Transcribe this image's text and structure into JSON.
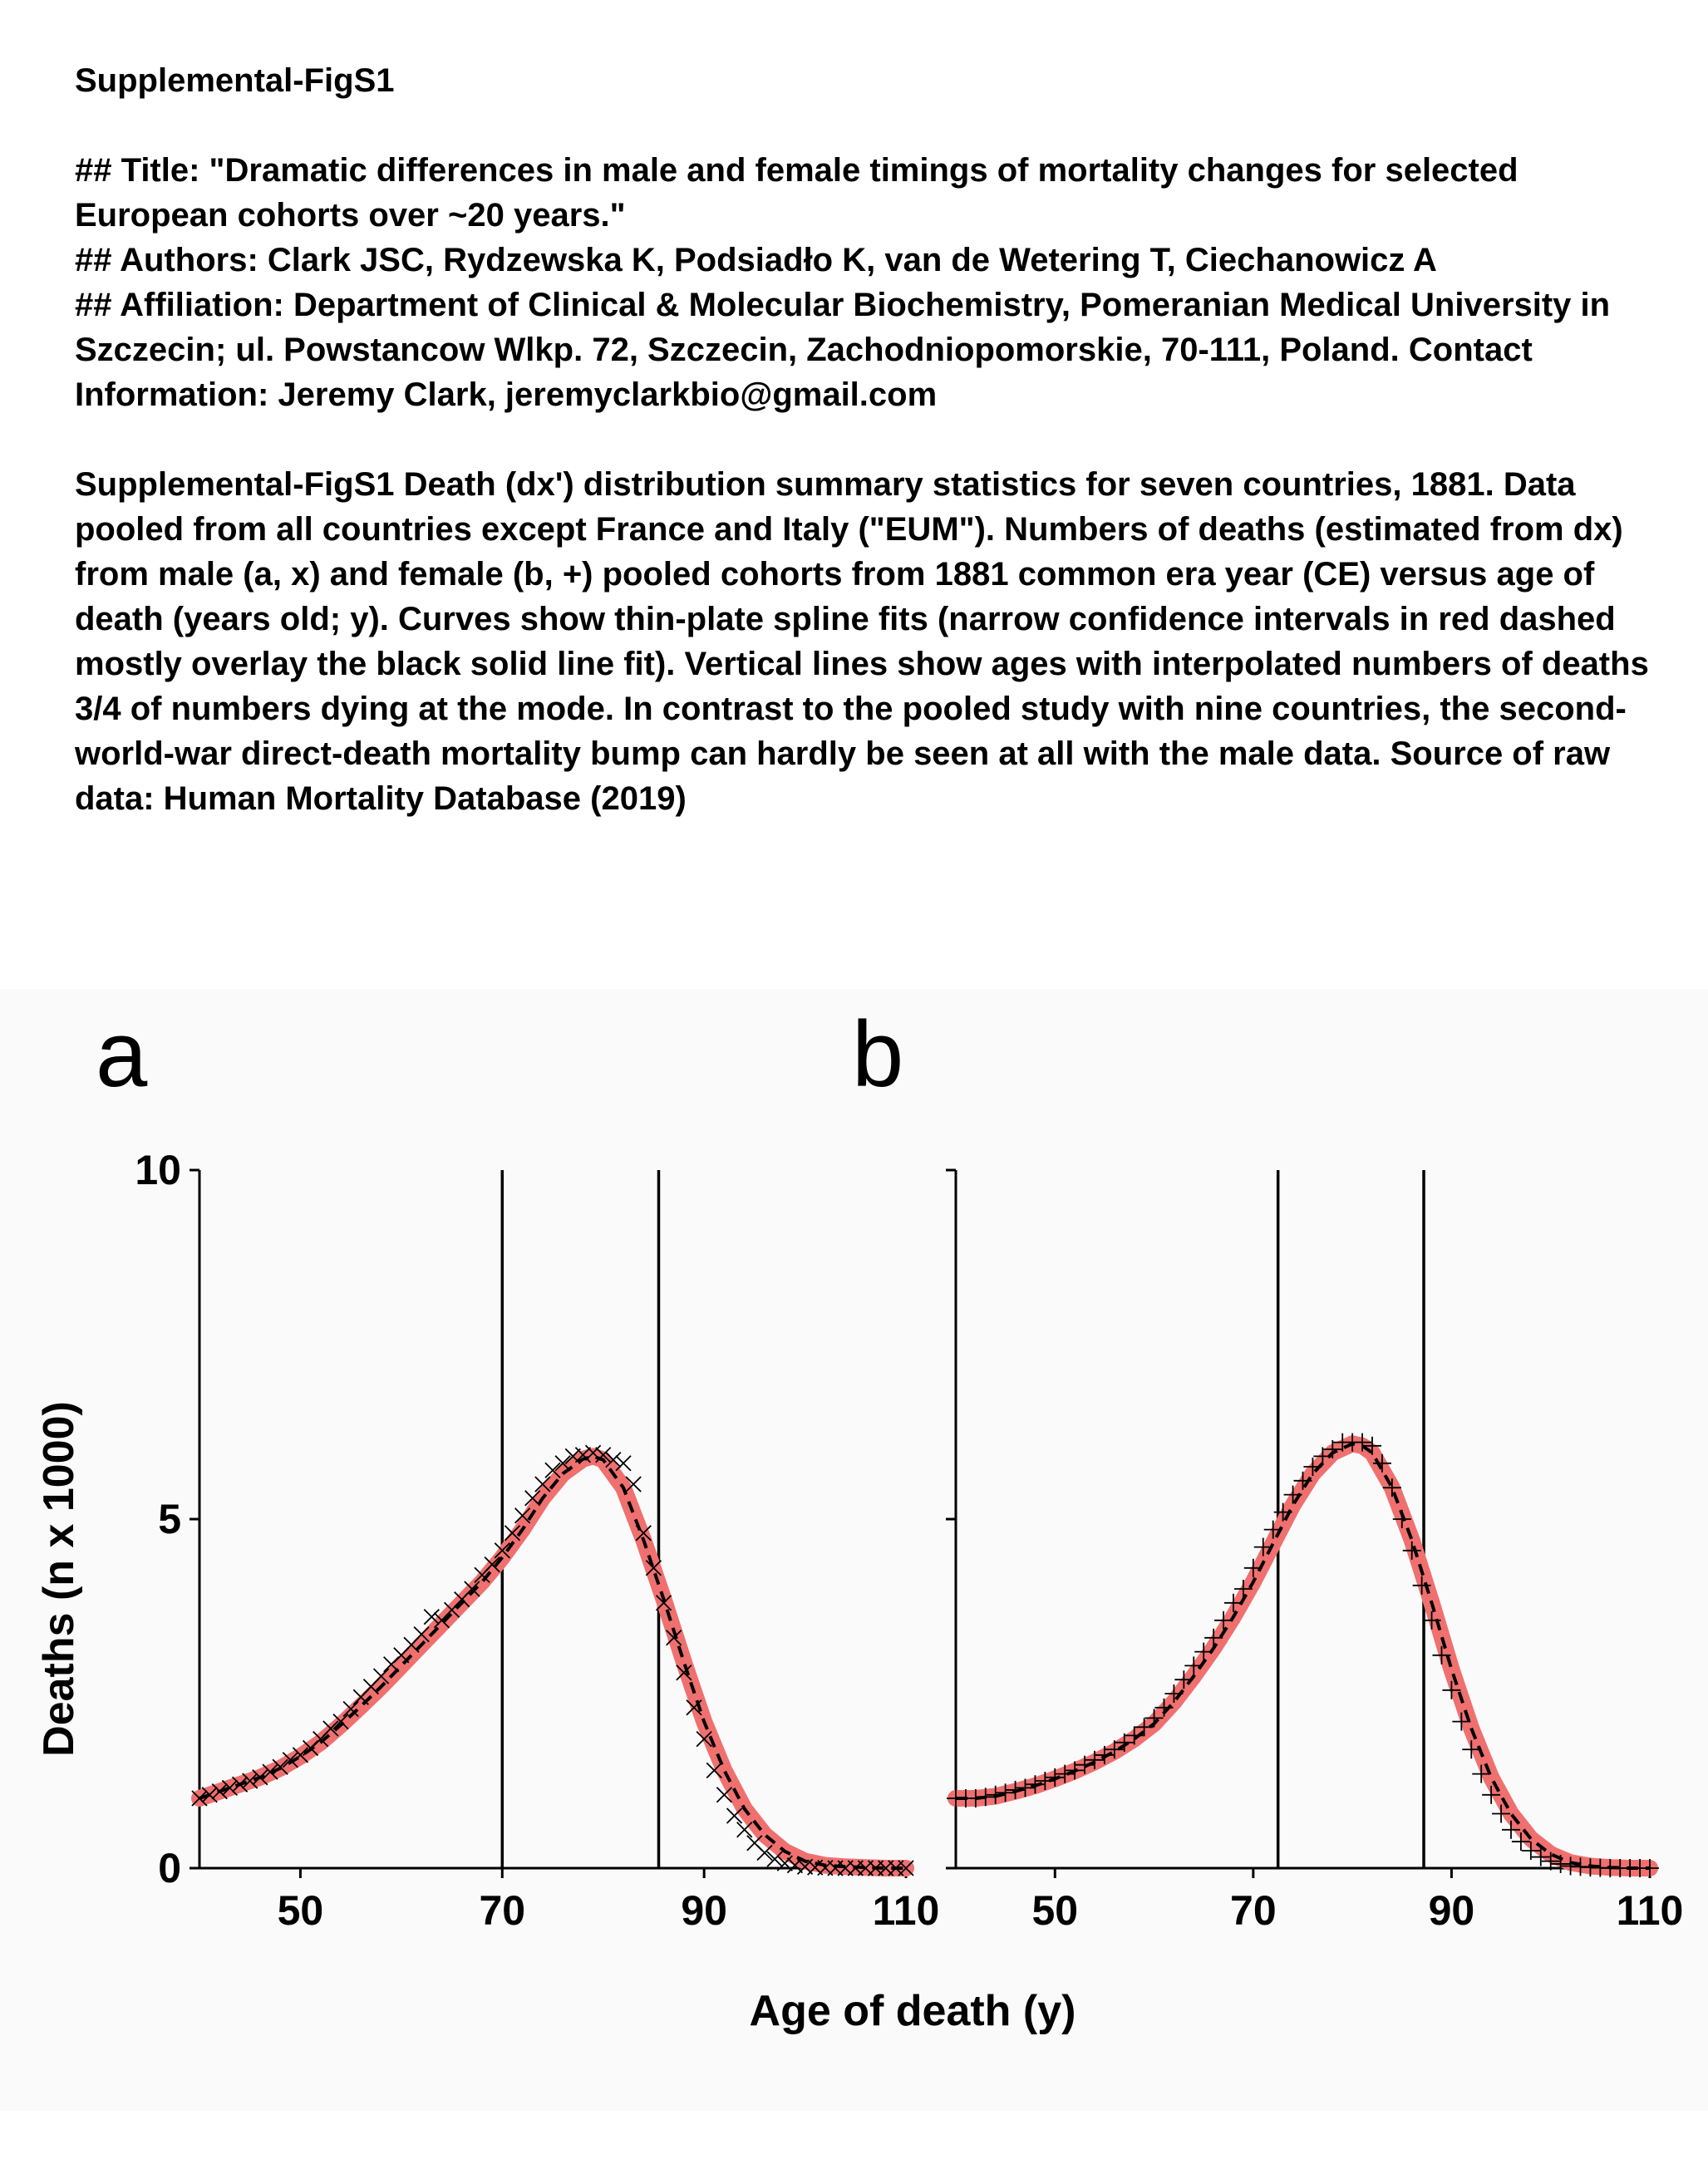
{
  "document": {
    "heading": "Supplemental-FigS1",
    "title_line": "## Title: \"Dramatic differences in male and female timings of mortality changes for selected European cohorts over ~20 years.\"",
    "authors_line": "## Authors: Clark JSC, Rydzewska K, Podsiadło K, van de Wetering T, Ciechanowicz A",
    "affiliation_line": "## Affiliation: Department of Clinical & Molecular Biochemistry, Pomeranian Medical University in Szczecin; ul. Powstancow Wlkp. 72, Szczecin, Zachodniopomorskie, 70-111, Poland. Contact Information: Jeremy Clark, jeremyclarkbio@gmail.com",
    "caption": "Supplemental-FigS1 Death (dx') distribution summary statistics for seven countries, 1881. Data pooled from all countries except France and Italy (\"EUM\"). Numbers of deaths (estimated from dx) from male (a, x) and female (b, +) pooled cohorts from 1881 common era year (CE) versus age of death (years old; y). Curves show thin-plate spline fits (narrow confidence intervals in red dashed mostly overlay the black solid line fit). Vertical lines show ages with interpolated numbers of deaths 3/4 of numbers dying at the mode. In contrast to the pooled study with nine countries, the second-world-war direct-death mortality bump can hardly be seen at all with the male data. Source of raw data: Human Mortality Database (2019)"
  },
  "figure": {
    "xlabel": "Age  of  death  (y)",
    "ylabel": "Deaths  (n  x  1000)",
    "colors": {
      "ci_band": "#f07070",
      "fit_line": "#000000",
      "points": "#000000",
      "background": "#fafafa"
    }
  },
  "chart_data": [
    {
      "type": "scatter",
      "panel_label": "a",
      "marker": "x",
      "xlim": [
        40,
        110
      ],
      "ylim": [
        0,
        10
      ],
      "xticks": [
        50,
        70,
        90,
        110
      ],
      "yticks": [
        0,
        5,
        10
      ],
      "ytick_labels": [
        "0",
        "5",
        "10"
      ],
      "vlines": [
        70,
        85.5
      ],
      "grid": false,
      "series": [
        {
          "x": [
            40,
            41,
            42,
            43,
            44,
            45,
            46,
            47,
            48,
            49,
            50,
            51,
            52,
            53,
            54,
            55,
            56,
            57,
            58,
            59,
            60,
            61,
            62,
            63,
            64,
            65,
            66,
            67,
            68,
            69,
            70,
            71,
            72,
            73,
            74,
            75,
            76,
            77,
            78,
            79,
            80,
            81,
            82,
            83,
            84,
            85,
            86,
            87,
            88,
            89,
            90,
            91,
            92,
            93,
            94,
            95,
            96,
            97,
            98,
            99,
            100,
            101,
            102,
            103,
            104,
            105,
            106,
            107,
            108,
            109,
            110
          ],
          "y": [
            1.0,
            1.05,
            1.1,
            1.15,
            1.2,
            1.25,
            1.3,
            1.38,
            1.45,
            1.55,
            1.62,
            1.72,
            1.85,
            2.0,
            2.1,
            2.28,
            2.45,
            2.6,
            2.75,
            2.92,
            3.05,
            3.2,
            3.35,
            3.6,
            3.55,
            3.7,
            3.85,
            4.0,
            4.2,
            4.35,
            4.55,
            4.8,
            5.05,
            5.3,
            5.5,
            5.7,
            5.8,
            5.9,
            5.92,
            5.95,
            5.92,
            5.85,
            5.8,
            5.5,
            4.8,
            4.3,
            3.8,
            3.3,
            2.8,
            2.3,
            1.85,
            1.4,
            1.05,
            0.75,
            0.55,
            0.36,
            0.22,
            0.13,
            0.07,
            0.04,
            0.02,
            0.01,
            0.005,
            0,
            0,
            0,
            0,
            0,
            0,
            0,
            0
          ]
        }
      ],
      "fit": {
        "x": [
          40,
          42,
          44,
          46,
          48,
          50,
          52,
          54,
          56,
          58,
          60,
          62,
          64,
          66,
          68,
          70,
          72,
          74,
          76,
          78,
          79,
          80,
          82,
          84,
          86,
          88,
          90,
          92,
          94,
          96,
          98,
          100,
          102,
          104,
          106,
          108,
          110
        ],
        "y": [
          1.0,
          1.1,
          1.2,
          1.3,
          1.43,
          1.6,
          1.8,
          2.05,
          2.32,
          2.6,
          2.9,
          3.2,
          3.5,
          3.8,
          4.1,
          4.45,
          4.85,
          5.3,
          5.65,
          5.86,
          5.9,
          5.85,
          5.45,
          4.7,
          3.85,
          2.95,
          2.1,
          1.4,
          0.85,
          0.48,
          0.24,
          0.1,
          0.04,
          0.02,
          0.01,
          0,
          0
        ]
      }
    },
    {
      "type": "scatter",
      "panel_label": "b",
      "marker": "+",
      "xlim": [
        40,
        110
      ],
      "ylim": [
        0,
        10
      ],
      "xticks": [
        50,
        70,
        90,
        110
      ],
      "yticks": [
        0,
        5,
        10
      ],
      "ytick_labels": [
        "",
        "",
        ""
      ],
      "vlines": [
        72.5,
        87.2
      ],
      "grid": false,
      "series": [
        {
          "x": [
            40,
            41,
            42,
            43,
            44,
            45,
            46,
            47,
            48,
            49,
            50,
            51,
            52,
            53,
            54,
            55,
            56,
            57,
            58,
            59,
            60,
            61,
            62,
            63,
            64,
            65,
            66,
            67,
            68,
            69,
            70,
            71,
            72,
            73,
            74,
            75,
            76,
            77,
            78,
            79,
            80,
            81,
            82,
            83,
            84,
            85,
            86,
            87,
            88,
            89,
            90,
            91,
            92,
            93,
            94,
            95,
            96,
            97,
            98,
            99,
            100,
            101,
            102,
            103,
            104,
            105,
            106,
            107,
            108,
            109,
            110
          ],
          "y": [
            1.0,
            1.0,
            1.0,
            1.02,
            1.05,
            1.08,
            1.12,
            1.15,
            1.2,
            1.25,
            1.3,
            1.35,
            1.4,
            1.48,
            1.55,
            1.62,
            1.7,
            1.8,
            1.9,
            2.02,
            2.15,
            2.3,
            2.5,
            2.7,
            2.9,
            3.1,
            3.3,
            3.55,
            3.8,
            4.0,
            4.3,
            4.6,
            4.85,
            5.1,
            5.35,
            5.55,
            5.75,
            5.9,
            6.0,
            6.1,
            6.1,
            6.1,
            6.05,
            5.8,
            5.45,
            5.0,
            4.55,
            4.05,
            3.55,
            3.05,
            2.55,
            2.1,
            1.7,
            1.35,
            1.05,
            0.78,
            0.55,
            0.38,
            0.25,
            0.16,
            0.1,
            0.06,
            0.03,
            0.02,
            0.01,
            0.005,
            0,
            0,
            0,
            0,
            0
          ]
        }
      ],
      "fit": {
        "x": [
          40,
          42,
          44,
          46,
          48,
          50,
          52,
          54,
          56,
          58,
          60,
          62,
          64,
          66,
          68,
          70,
          72,
          74,
          76,
          78,
          80,
          81,
          82,
          84,
          86,
          88,
          90,
          92,
          94,
          96,
          98,
          100,
          102,
          104,
          106,
          108,
          110
        ],
        "y": [
          1.0,
          1.0,
          1.03,
          1.1,
          1.18,
          1.28,
          1.39,
          1.52,
          1.67,
          1.85,
          2.07,
          2.38,
          2.75,
          3.15,
          3.6,
          4.1,
          4.65,
          5.2,
          5.65,
          5.95,
          6.08,
          6.05,
          5.95,
          5.45,
          4.7,
          3.8,
          2.85,
          2.0,
          1.3,
          0.78,
          0.42,
          0.2,
          0.08,
          0.03,
          0.01,
          0,
          0
        ]
      }
    }
  ]
}
